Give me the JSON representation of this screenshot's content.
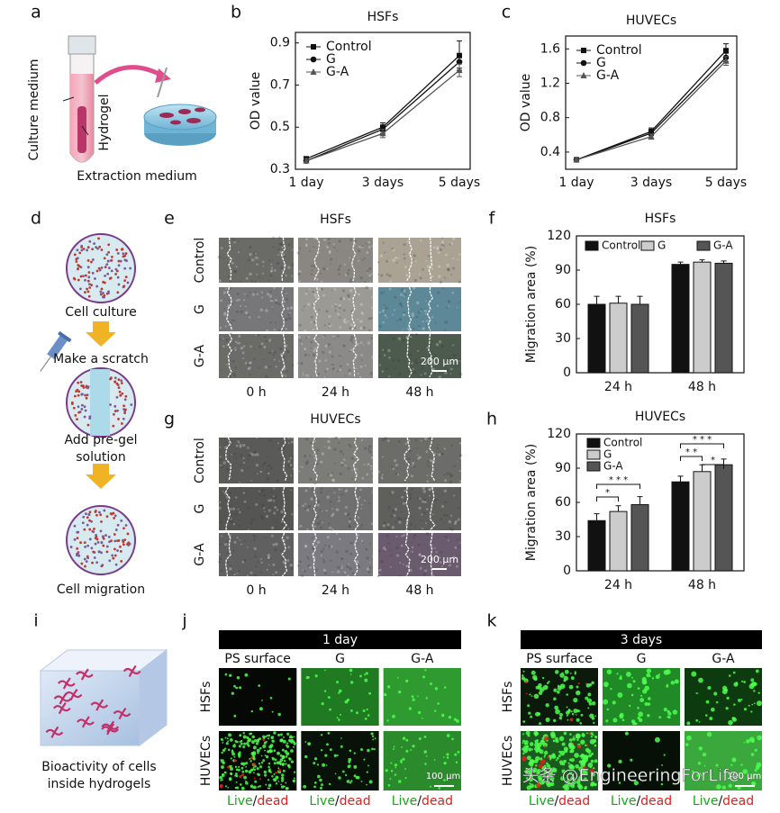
{
  "panel_labels": [
    "a",
    "b",
    "c",
    "d",
    "e",
    "f",
    "g",
    "h",
    "i",
    "j",
    "k"
  ],
  "panel_a": {
    "culture_medium": "Culture medium",
    "hydrogel": "Hydrogel",
    "caption": "Extraction medium"
  },
  "panel_d": {
    "cell_culture": "Cell culture",
    "scratch": "Make a scratch",
    "add_gel": [
      "Add pre-gel",
      "solution"
    ],
    "migration": "Cell migration"
  },
  "panel_e": {
    "title": "HSFs",
    "rows": [
      "Control",
      "G",
      "G-A"
    ],
    "columns": [
      "0 h",
      "24 h",
      "48 h"
    ],
    "scale_bar": "200 μm"
  },
  "panel_g": {
    "title": "HUVECs",
    "rows": [
      "Control",
      "G",
      "G-A"
    ],
    "columns": [
      "0 h",
      "24 h",
      "48 h"
    ],
    "scale_bar": "200 μm"
  },
  "panel_i": {
    "caption": [
      "Bioactivity of cells",
      "inside hydrogels"
    ]
  },
  "panel_j": {
    "header": "1 day",
    "columns": [
      "PS surface",
      "G",
      "G-A"
    ],
    "rows": [
      "HSFs",
      "HUVECs"
    ],
    "scale_bar": "100 μm",
    "stain": [
      "Live",
      "/",
      "dead"
    ]
  },
  "panel_k": {
    "header": "3 days",
    "columns": [
      "PS surface",
      "G",
      "G-A"
    ],
    "rows": [
      "HSFs",
      "HUVECs"
    ],
    "scale_bar": "100 μm",
    "stain": [
      "Live",
      "/",
      "dead"
    ]
  },
  "watermark": "头条 @EngineeringForLife",
  "chart_data": [
    {
      "type": "line",
      "title": "HSFs",
      "y_label": "OD value",
      "categories": [
        "1 day",
        "3 days",
        "5 days"
      ],
      "ylim": [
        0.3,
        0.95
      ],
      "yticks": [
        0.3,
        0.5,
        0.7,
        0.9
      ],
      "legend": "upper left",
      "series": [
        {
          "name": "Control",
          "color": "#111111",
          "marker": "square",
          "values": [
            0.35,
            0.5,
            0.84
          ],
          "errors": [
            0.01,
            0.02,
            0.07
          ]
        },
        {
          "name": "G",
          "color": "#111111",
          "marker": "circle",
          "values": [
            0.34,
            0.49,
            0.81
          ],
          "errors": [
            0.01,
            0.02,
            0.03
          ]
        },
        {
          "name": "G-A",
          "color": "#555555",
          "marker": "triangle",
          "values": [
            0.34,
            0.47,
            0.77
          ],
          "errors": [
            0.01,
            0.02,
            0.03
          ]
        }
      ]
    },
    {
      "type": "line",
      "title": "HUVECs",
      "y_label": "OD value",
      "categories": [
        "1 day",
        "3 days",
        "5 days"
      ],
      "ylim": [
        0.2,
        1.75
      ],
      "yticks": [
        0.4,
        0.8,
        1.2,
        1.6
      ],
      "legend": "upper left",
      "series": [
        {
          "name": "Control",
          "color": "#111111",
          "marker": "square",
          "values": [
            0.31,
            0.64,
            1.58
          ],
          "errors": [
            0.01,
            0.04,
            0.08
          ]
        },
        {
          "name": "G",
          "color": "#111111",
          "marker": "circle",
          "values": [
            0.31,
            0.62,
            1.5
          ],
          "errors": [
            0.01,
            0.03,
            0.05
          ]
        },
        {
          "name": "G-A",
          "color": "#555555",
          "marker": "triangle",
          "values": [
            0.31,
            0.58,
            1.46
          ],
          "errors": [
            0.01,
            0.03,
            0.05
          ]
        }
      ]
    },
    {
      "type": "bar",
      "title": "HSFs",
      "y_label": "Migration area (%)",
      "categories": [
        "24 h",
        "48 h"
      ],
      "ylim": [
        0,
        120
      ],
      "yticks": [
        0,
        30,
        60,
        90,
        120
      ],
      "legend": "upper left",
      "series": [
        {
          "name": "Control",
          "color": "#111111",
          "values": [
            60,
            95
          ],
          "errors": [
            7,
            2
          ]
        },
        {
          "name": "G",
          "color": "#cccccc",
          "values": [
            61,
            97
          ],
          "errors": [
            6,
            2
          ]
        },
        {
          "name": "G-A",
          "color": "#555555",
          "values": [
            60,
            96
          ],
          "errors": [
            7,
            2
          ]
        }
      ]
    },
    {
      "type": "bar",
      "title": "HUVECs",
      "y_label": "Migration area (%)",
      "categories": [
        "24 h",
        "48 h"
      ],
      "ylim": [
        0,
        120
      ],
      "yticks": [
        0,
        30,
        60,
        90,
        120
      ],
      "legend": "upper left",
      "series": [
        {
          "name": "Control",
          "color": "#111111",
          "values": [
            44,
            78
          ],
          "errors": [
            6,
            5
          ]
        },
        {
          "name": "G",
          "color": "#cccccc",
          "values": [
            52,
            87
          ],
          "errors": [
            5,
            6
          ]
        },
        {
          "name": "G-A",
          "color": "#555555",
          "values": [
            58,
            93
          ],
          "errors": [
            7,
            5
          ]
        }
      ],
      "annotations": [
        "*",
        "* * *",
        "* *",
        "* * *",
        "*"
      ]
    }
  ]
}
